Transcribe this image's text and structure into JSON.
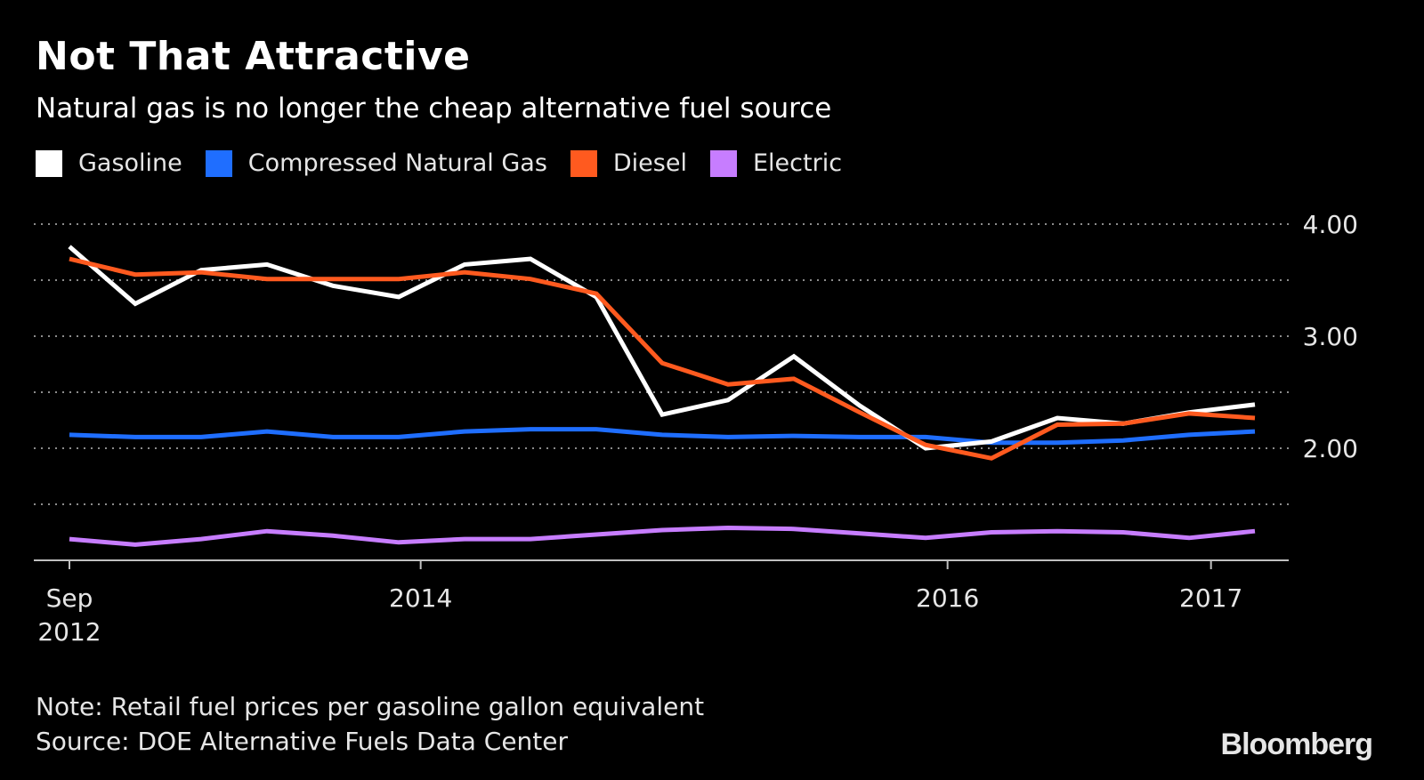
{
  "header": {
    "title": "Not That Attractive",
    "subtitle": "Natural gas is no longer the cheap alternative fuel source"
  },
  "footer": {
    "note": "Note: Retail fuel prices per gasoline gallon equivalent",
    "source": "Source: DOE Alternative Fuels Data Center",
    "logo": "Bloomberg"
  },
  "chart_data": {
    "type": "line",
    "title": "Not That Attractive",
    "subtitle": "Natural gas is no longer the cheap alternative fuel source",
    "x": [
      "2012-09",
      "2012-12",
      "2013-03",
      "2013-06",
      "2013-09",
      "2013-12",
      "2014-03",
      "2014-06",
      "2014-09",
      "2014-12",
      "2015-03",
      "2015-06",
      "2015-09",
      "2015-12",
      "2016-03",
      "2016-06",
      "2016-09",
      "2016-12",
      "2017-03"
    ],
    "x_ticks": [
      {
        "x": "2012-09",
        "label": "Sep",
        "label2": "2012"
      },
      {
        "x": "2014-01",
        "label": "2014"
      },
      {
        "x": "2016-01",
        "label": "2016"
      },
      {
        "x": "2017-01",
        "label": "2017"
      }
    ],
    "ylim": [
      1.0,
      4.0
    ],
    "y_ticks": [
      {
        "value": 4.0,
        "label": "4.00"
      },
      {
        "value": 3.5,
        "label": ""
      },
      {
        "value": 3.0,
        "label": "3.00"
      },
      {
        "value": 2.5,
        "label": ""
      },
      {
        "value": 2.0,
        "label": "2.00"
      },
      {
        "value": 1.5,
        "label": ""
      }
    ],
    "y_axis_side": "right",
    "grid": "dotted horizontal",
    "legend_position": "top-left",
    "series": [
      {
        "name": "Gasoline",
        "color": "#ffffff",
        "values": [
          3.8,
          3.29,
          3.59,
          3.64,
          3.45,
          3.35,
          3.64,
          3.69,
          3.35,
          2.3,
          2.43,
          2.82,
          2.38,
          2.0,
          2.06,
          2.27,
          2.22,
          2.32,
          2.39
        ]
      },
      {
        "name": "Compressed Natural Gas",
        "color": "#1f6eff",
        "values": [
          2.12,
          2.1,
          2.1,
          2.15,
          2.1,
          2.1,
          2.15,
          2.17,
          2.17,
          2.12,
          2.1,
          2.11,
          2.1,
          2.1,
          2.05,
          2.05,
          2.07,
          2.12,
          2.15
        ]
      },
      {
        "name": "Diesel",
        "color": "#ff5a1f",
        "values": [
          3.69,
          3.55,
          3.57,
          3.51,
          3.51,
          3.51,
          3.57,
          3.51,
          3.38,
          2.76,
          2.57,
          2.62,
          2.32,
          2.03,
          1.91,
          2.21,
          2.22,
          2.31,
          2.27
        ]
      },
      {
        "name": "Electric",
        "color": "#c77dff",
        "values": [
          1.19,
          1.14,
          1.19,
          1.26,
          1.22,
          1.16,
          1.19,
          1.19,
          1.23,
          1.27,
          1.29,
          1.28,
          1.24,
          1.2,
          1.25,
          1.26,
          1.25,
          1.2,
          1.26
        ]
      }
    ]
  }
}
